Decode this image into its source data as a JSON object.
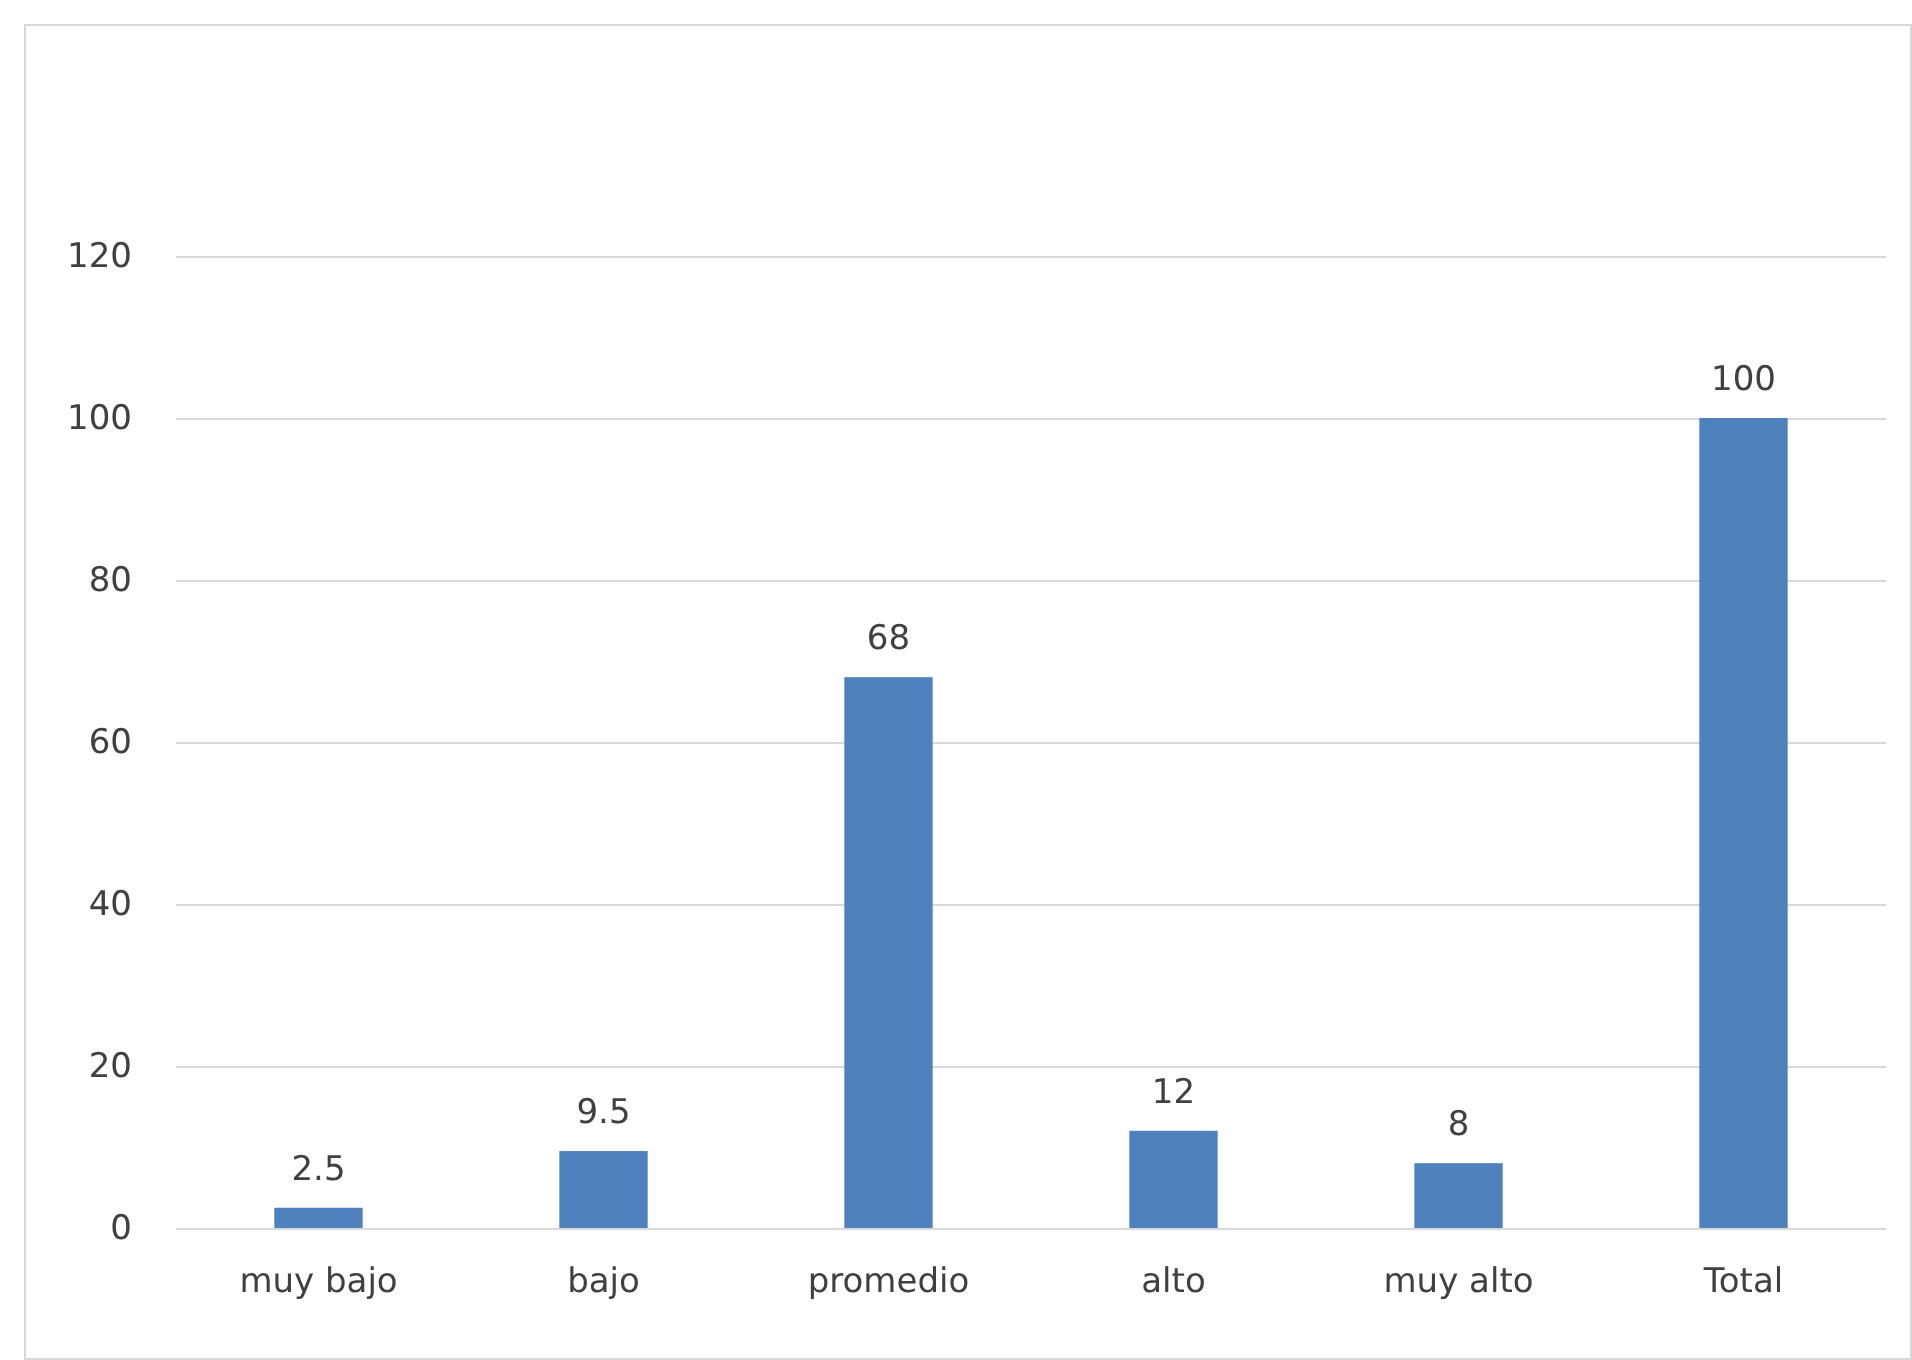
{
  "chart_data": {
    "type": "bar",
    "categories": [
      "muy bajo",
      "bajo",
      "promedio",
      "alto",
      "muy alto",
      "Total"
    ],
    "values": [
      2.5,
      9.5,
      68,
      12,
      8,
      100
    ],
    "color": "#4f81bd",
    "ylim": [
      0,
      120
    ],
    "yticks": [
      0,
      20,
      40,
      60,
      80,
      100,
      120
    ],
    "grid": "y",
    "data_labels": true
  }
}
